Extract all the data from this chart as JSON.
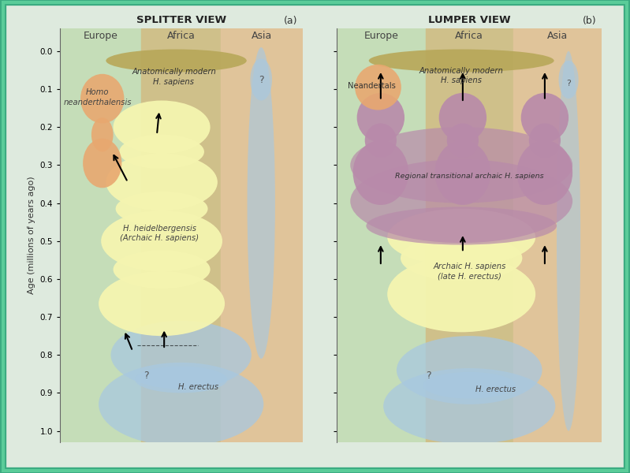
{
  "title_left": "SPLITTER VIEW",
  "title_right": "LUMPER VIEW",
  "panel_label_left": "(a)",
  "panel_label_right": "(b)",
  "ylabel": "Age (millions of years ago)",
  "fig_bg": "#deeade",
  "border_color": "#3aaa80",
  "region_colors": [
    "#c5ddb8",
    "#cfc08a",
    "#e0c49a"
  ],
  "colors": {
    "tan": "#b8a85a",
    "yellow": "#f5f5b0",
    "blue": "#a8c8e0",
    "orange": "#e8a870",
    "mauve": "#b88aaa",
    "mauve_light": "#c8a0bb"
  }
}
